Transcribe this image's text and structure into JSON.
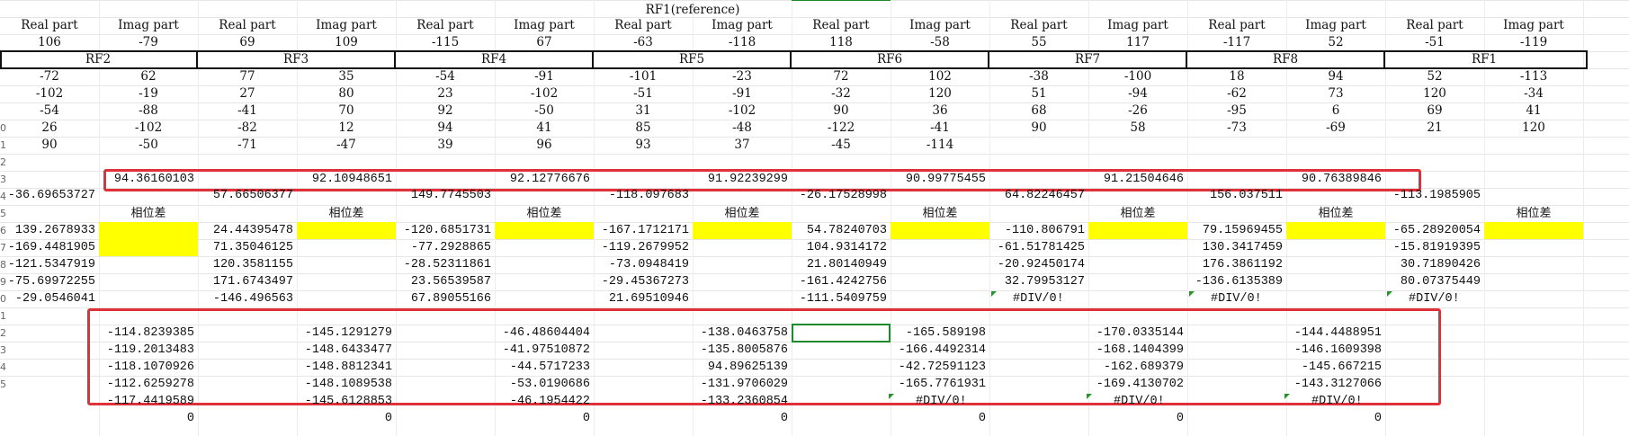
{
  "rf1_header": "RF1(reference)",
  "row_headers": [
    "Real part",
    "Imag part",
    "Real part",
    "Imag part",
    "Real part",
    "Imag part",
    "Real part",
    "Imag part",
    "Real part",
    "Imag part",
    "Real part",
    "Imag part",
    "Real part",
    "Imag part",
    "Real part",
    "Imag part"
  ],
  "rf1_values": [
    "106",
    "-79",
    "69",
    "109",
    "-115",
    "67",
    "-63",
    "-118",
    "118",
    "-58",
    "55",
    "117",
    "-117",
    "52",
    "-51",
    "-119"
  ],
  "rf_labels": [
    "RF2",
    "RF3",
    "RF4",
    "RF5",
    "RF6",
    "RF7",
    "RF8",
    "RF1"
  ],
  "data_rows": [
    [
      "-72",
      "62",
      "77",
      "35",
      "-54",
      "-91",
      "-101",
      "-23",
      "72",
      "102",
      "-38",
      "-100",
      "18",
      "94",
      "52",
      "-113"
    ],
    [
      "-102",
      "-19",
      "27",
      "80",
      "23",
      "-102",
      "-51",
      "-91",
      "-32",
      "120",
      "51",
      "-94",
      "-62",
      "73",
      "120",
      "-34"
    ],
    [
      "-54",
      "-88",
      "-41",
      "70",
      "92",
      "-50",
      "31",
      "-102",
      "90",
      "36",
      "68",
      "-26",
      "-95",
      "6",
      "69",
      "41"
    ],
    [
      "26",
      "-102",
      "-82",
      "12",
      "94",
      "41",
      "85",
      "-48",
      "-122",
      "-41",
      "90",
      "58",
      "-73",
      "-69",
      "21",
      "120"
    ],
    [
      "90",
      "-50",
      "-71",
      "-47",
      "39",
      "96",
      "93",
      "37",
      "-45",
      "-114",
      "",
      "",
      "",
      "",
      "",
      ""
    ]
  ],
  "averages": [
    "94.36160103",
    "92.10948651",
    "92.12776676",
    "91.92239299",
    "90.99775455",
    "91.21504646",
    "90.76389846"
  ],
  "ref_phases": [
    "-36.69653727",
    "57.66506377",
    "149.7745503",
    "-118.097683",
    "-26.17528998",
    "64.82246457",
    "156.037511",
    "-113.1985905"
  ],
  "phase_diff_label": "相位差",
  "phase_rows": [
    [
      "139.2678933",
      "24.44395478",
      "-120.6851731",
      "-167.1712171",
      "54.78240703",
      "-110.806791",
      "79.15969455",
      "-65.28920054"
    ],
    [
      "-169.4481905",
      "71.35046125",
      "-77.2928865",
      "-119.2679952",
      "104.9314172",
      "-61.51781425",
      "130.3417459",
      "-15.81919395"
    ],
    [
      "-121.5347919",
      "120.3581155",
      "-28.52311861",
      "-73.0948419",
      "21.80140949",
      "-20.92450174",
      "176.3861192",
      "30.71890426"
    ],
    [
      "-75.69972255",
      "171.6743497",
      "23.56539587",
      "-29.45367273",
      "-161.4242756",
      "32.79953127",
      "-136.6135389",
      "80.07375449"
    ],
    [
      "-29.0546041",
      "-146.496563",
      "67.89055166",
      "21.69510946",
      "-111.5409759",
      "#DIV/0!",
      "#DIV/0!",
      "#DIV/0!"
    ]
  ],
  "diff_rows": [
    [
      "-114.8239385",
      "-145.1291279",
      "-46.48604404",
      "-138.0463758",
      "-165.589198",
      "-170.0335144",
      "-144.4488951"
    ],
    [
      "-119.2013483",
      "-148.6433477",
      "-41.97510872",
      "-135.8005876",
      "-166.4492314",
      "-168.1404399",
      "-146.1609398"
    ],
    [
      "-118.1070926",
      "-148.8812341",
      "-44.5717233",
      "94.89625139",
      "-42.72591123",
      "-162.689379",
      "-145.667215"
    ],
    [
      "-112.6259278",
      "-148.1089538",
      "-53.0190686",
      "-131.9706029",
      "-165.7761931",
      "-169.4130702",
      "-143.3127066"
    ],
    [
      "-117.4419589",
      "-145.6128853",
      "-46.1954422",
      "-133.2360854",
      "#DIV/0!",
      "#DIV/0!",
      "#DIV/0!"
    ]
  ],
  "zero_label": "0",
  "row_numbers": [
    "0",
    "1",
    "2",
    "3",
    "4",
    "5",
    "6",
    "7",
    "8",
    "9",
    "0",
    "1",
    "2",
    "3",
    "4",
    "5"
  ],
  "colors": {
    "yellow": "#ffff00",
    "red_box": "#e0303a",
    "selection": "#1e8a2e"
  }
}
